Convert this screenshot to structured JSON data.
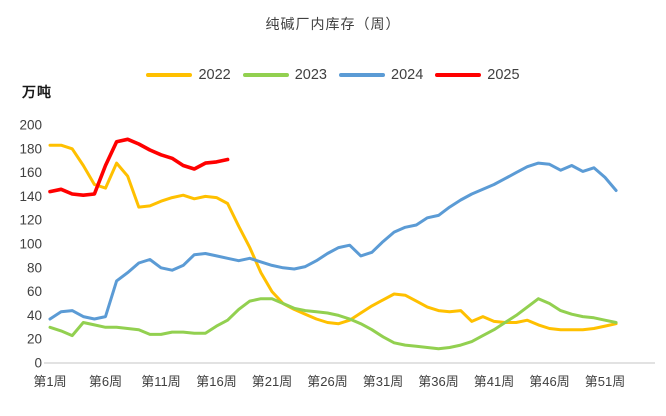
{
  "chart_data": {
    "type": "line",
    "title": "纯碱厂内库存（周）",
    "unit_label": "万吨",
    "x_axis": {
      "tick_labels": [
        "第1周",
        "第6周",
        "第11周",
        "第16周",
        "第21周",
        "第26周",
        "第31周",
        "第36周",
        "第41周",
        "第46周",
        "第51周"
      ],
      "tick_weeks": [
        1,
        6,
        11,
        16,
        21,
        26,
        31,
        36,
        41,
        46,
        51
      ],
      "total_weeks": 52
    },
    "y_axis": {
      "ticks": [
        0,
        20,
        40,
        60,
        80,
        100,
        120,
        140,
        160,
        180,
        200
      ],
      "range": [
        0,
        200
      ],
      "gridlines": false
    },
    "legend_position": "top-center",
    "colors": {
      "axis_line": "#d9d9d9",
      "text": "#404040",
      "background": "#ffffff"
    },
    "series": [
      {
        "name": "2022",
        "color": "#FFC000",
        "start_week": 1,
        "values": [
          183,
          183,
          180,
          166,
          150,
          147,
          168,
          157,
          131,
          132,
          136,
          139,
          141,
          138,
          140,
          139,
          134,
          115,
          97,
          76,
          60,
          50,
          45,
          41,
          37,
          34,
          33,
          36,
          42,
          48,
          53,
          58,
          57,
          52,
          47,
          44,
          43,
          44,
          35,
          39,
          35,
          34,
          34,
          36,
          32,
          29,
          28,
          28,
          28,
          29,
          31,
          33
        ]
      },
      {
        "name": "2023",
        "color": "#92D050",
        "start_week": 1,
        "values": [
          30,
          27,
          23,
          34,
          32,
          30,
          30,
          29,
          28,
          24,
          24,
          26,
          26,
          25,
          25,
          31,
          36,
          45,
          52,
          54,
          54,
          50,
          46,
          44,
          43,
          42,
          40,
          37,
          33,
          28,
          22,
          17,
          15,
          14,
          13,
          12,
          13,
          15,
          18,
          23,
          28,
          34,
          40,
          47,
          54,
          50,
          44,
          41,
          39,
          38,
          36,
          34
        ]
      },
      {
        "name": "2024",
        "color": "#5B9BD5",
        "start_week": 1,
        "values": [
          37,
          43,
          44,
          39,
          37,
          39,
          69,
          76,
          84,
          87,
          80,
          78,
          82,
          91,
          92,
          90,
          88,
          86,
          88,
          85,
          82,
          80,
          79,
          81,
          86,
          92,
          97,
          99,
          90,
          93,
          102,
          110,
          114,
          116,
          122,
          124,
          131,
          137,
          142,
          146,
          150,
          155,
          160,
          165,
          168,
          167,
          162,
          166,
          161,
          164,
          156,
          145
        ]
      },
      {
        "name": "2025",
        "color": "#FF0000",
        "start_week": 1,
        "values": [
          144,
          146,
          142,
          141,
          142,
          166,
          186,
          188,
          184,
          179,
          175,
          172,
          166,
          163,
          168,
          169,
          171
        ]
      }
    ]
  }
}
